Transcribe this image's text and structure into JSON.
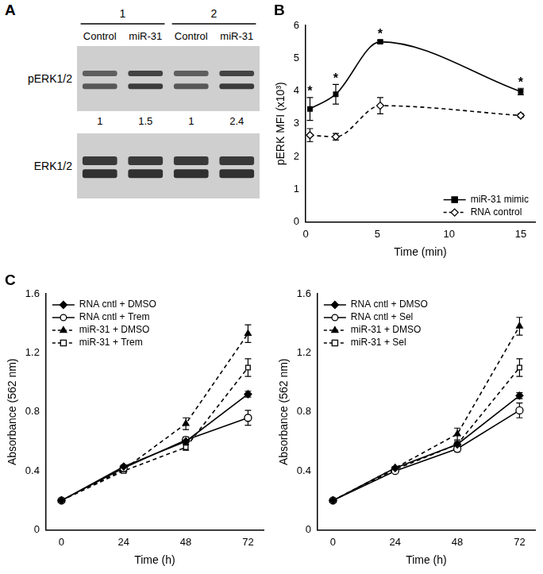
{
  "blot": {
    "panel": "A",
    "groups": [
      {
        "label": "1",
        "lanes": [
          "Control",
          "miR-31"
        ]
      },
      {
        "label": "2",
        "lanes": [
          "Control",
          "miR-31"
        ]
      }
    ],
    "rows": [
      {
        "label": "pERK1/2",
        "quantification": [
          1,
          1.5,
          1,
          2.4
        ]
      },
      {
        "label": "ERK1/2"
      }
    ]
  },
  "chart_data": [
    {
      "panel": "B",
      "type": "line",
      "x_label": "Time (min)",
      "y_label": "pERK MFI (x10³)",
      "x": [
        0.3,
        2.1,
        5.2,
        15
      ],
      "xlim": [
        0,
        16
      ],
      "xticks": [
        0,
        5,
        10,
        15
      ],
      "ylim": [
        0,
        6
      ],
      "yticks": [
        0,
        1,
        2,
        3,
        4,
        5,
        6
      ],
      "grid": false,
      "legend": "bottom-right",
      "series": [
        {
          "name": "miR-31 mimic",
          "color": "#000000",
          "marker": "square",
          "line_style": "solid",
          "values": [
            3.45,
            3.9,
            5.5,
            3.98
          ],
          "errors": [
            0.35,
            0.3,
            0.05,
            0.1
          ],
          "annotations": [
            "*",
            "*",
            "*",
            "*"
          ]
        },
        {
          "name": "RNA control",
          "color": "#000000",
          "marker": "open-diamond",
          "line_style": "dashed",
          "values": [
            2.65,
            2.6,
            3.55,
            3.25
          ],
          "errors": [
            0.2,
            0.1,
            0.25,
            0.05
          ]
        }
      ]
    },
    {
      "panel": "C",
      "type": "line",
      "x_label": "Time (h)",
      "y_label": "Absorbance (562 nm)",
      "x": [
        0,
        24,
        48,
        72
      ],
      "xlim": [
        -6,
        78
      ],
      "xticks": [
        0,
        24,
        48,
        72
      ],
      "ylim": [
        0,
        1.6
      ],
      "yticks": [
        0,
        0.4,
        0.8,
        1.2,
        1.6
      ],
      "grid": false,
      "legend": "top-left",
      "series": [
        {
          "name": "RNA cntl + DMSO",
          "color": "#000000",
          "marker": "diamond",
          "line_style": "solid",
          "values": [
            0.2,
            0.43,
            0.6,
            0.92
          ],
          "errors": [
            0,
            0.01,
            0.02,
            0.02
          ]
        },
        {
          "name": "RNA cntl + Trem",
          "color": "#000000",
          "marker": "open-circle",
          "line_style": "solid",
          "values": [
            0.2,
            0.42,
            0.61,
            0.76
          ],
          "errors": [
            0,
            0.01,
            0.02,
            0.05
          ]
        },
        {
          "name": "miR-31 + DMSO",
          "color": "#000000",
          "marker": "triangle",
          "line_style": "dashed",
          "values": [
            0.2,
            0.41,
            0.72,
            1.33
          ],
          "errors": [
            0,
            0.01,
            0.04,
            0.06
          ]
        },
        {
          "name": "miR-31 + Trem",
          "color": "#000000",
          "marker": "open-square",
          "line_style": "dashed",
          "values": [
            0.2,
            0.4,
            0.56,
            1.1
          ],
          "errors": [
            0,
            0.01,
            0.02,
            0.06
          ]
        }
      ]
    },
    {
      "type": "line",
      "x_label": "Time (h)",
      "y_label": "Absorbance (562 nm)",
      "x": [
        0,
        24,
        48,
        72
      ],
      "xlim": [
        -6,
        78
      ],
      "xticks": [
        0,
        24,
        48,
        72
      ],
      "ylim": [
        0,
        1.6
      ],
      "yticks": [
        0,
        0.4,
        0.8,
        1.2,
        1.6
      ],
      "grid": false,
      "legend": "top-left",
      "series": [
        {
          "name": "RNA cntl + DMSO",
          "color": "#000000",
          "marker": "diamond",
          "line_style": "solid",
          "values": [
            0.2,
            0.42,
            0.58,
            0.91
          ],
          "errors": [
            0,
            0.01,
            0.01,
            0.02
          ]
        },
        {
          "name": "RNA cntl + Sel",
          "color": "#000000",
          "marker": "open-circle",
          "line_style": "solid",
          "values": [
            0.2,
            0.4,
            0.55,
            0.81
          ],
          "errors": [
            0,
            0.01,
            0.02,
            0.05
          ]
        },
        {
          "name": "miR-31 + DMSO",
          "color": "#000000",
          "marker": "triangle",
          "line_style": "dashed",
          "values": [
            0.2,
            0.42,
            0.65,
            1.38
          ],
          "errors": [
            0,
            0.01,
            0.04,
            0.06
          ]
        },
        {
          "name": "miR-31 + Sel",
          "color": "#000000",
          "marker": "open-square",
          "line_style": "dashed",
          "values": [
            0.2,
            0.41,
            0.58,
            1.1
          ],
          "errors": [
            0,
            0.01,
            0.02,
            0.06
          ]
        }
      ]
    }
  ]
}
